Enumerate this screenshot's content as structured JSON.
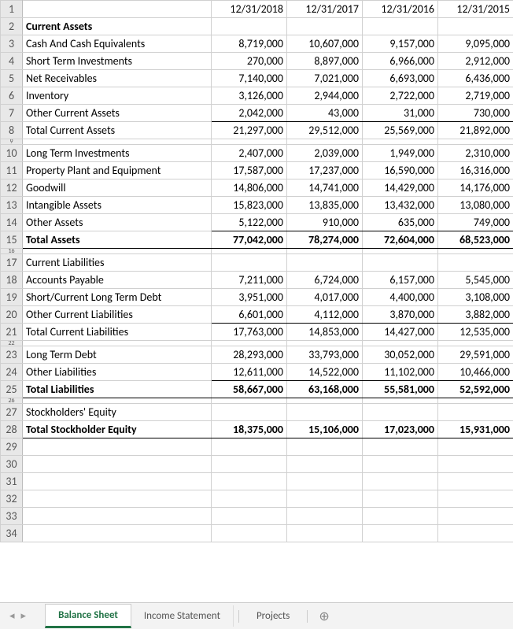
{
  "header": {
    "dates": [
      "12/31/2018",
      "12/31/2017",
      "12/31/2016",
      "12/31/2015"
    ]
  },
  "rows": [
    {
      "num": "1",
      "label": "",
      "values": [
        "12/31/2018",
        "12/31/2017",
        "12/31/2016",
        "12/31/2015"
      ],
      "useDates": true
    },
    {
      "num": "2",
      "label": "Current Assets",
      "values": [
        "",
        "",
        "",
        ""
      ],
      "bold": true
    },
    {
      "num": "3",
      "label": "Cash And Cash Equivalents",
      "values": [
        "8,719,000",
        "10,607,000",
        "9,157,000",
        "9,095,000"
      ]
    },
    {
      "num": "4",
      "label": "Short Term Investments",
      "values": [
        "270,000",
        "8,897,000",
        "6,966,000",
        "2,912,000"
      ]
    },
    {
      "num": "5",
      "label": "Net Receivables",
      "values": [
        "7,140,000",
        "7,021,000",
        "6,693,000",
        "6,436,000"
      ]
    },
    {
      "num": "6",
      "label": "Inventory",
      "values": [
        "3,126,000",
        "2,944,000",
        "2,722,000",
        "2,719,000"
      ]
    },
    {
      "num": "7",
      "label": "Other Current Assets",
      "values": [
        "2,042,000",
        "43,000",
        "31,000",
        "730,000"
      ],
      "underline": true
    },
    {
      "num": "8",
      "label": "Total Current Assets",
      "values": [
        "21,297,000",
        "29,512,000",
        "25,569,000",
        "21,892,000"
      ]
    },
    {
      "num": "9",
      "hidden": true
    },
    {
      "num": "10",
      "label": "Long Term Investments",
      "values": [
        "2,407,000",
        "2,039,000",
        "1,949,000",
        "2,310,000"
      ]
    },
    {
      "num": "11",
      "label": "Property Plant and Equipment",
      "values": [
        "17,587,000",
        "17,237,000",
        "16,590,000",
        "16,316,000"
      ]
    },
    {
      "num": "12",
      "label": "Goodwill",
      "values": [
        "14,806,000",
        "14,741,000",
        "14,429,000",
        "14,176,000"
      ]
    },
    {
      "num": "13",
      "label": "Intangible Assets",
      "values": [
        "15,823,000",
        "13,835,000",
        "13,432,000",
        "13,080,000"
      ]
    },
    {
      "num": "14",
      "label": "Other Assets",
      "values": [
        "5,122,000",
        "910,000",
        "635,000",
        "749,000"
      ],
      "underline": true
    },
    {
      "num": "15",
      "label": "Total Assets",
      "values": [
        "77,042,000",
        "78,274,000",
        "72,604,000",
        "68,523,000"
      ],
      "bold": true,
      "totalLine": true
    },
    {
      "num": "16",
      "hidden": true
    },
    {
      "num": "17",
      "label": "Current Liabilities",
      "values": [
        "",
        "",
        "",
        ""
      ]
    },
    {
      "num": "18",
      "label": "Accounts Payable",
      "values": [
        "7,211,000",
        "6,724,000",
        "6,157,000",
        "5,545,000"
      ]
    },
    {
      "num": "19",
      "label": "Short/Current Long Term Debt",
      "values": [
        "3,951,000",
        "4,017,000",
        "4,400,000",
        "3,108,000"
      ]
    },
    {
      "num": "20",
      "label": "Other Current Liabilities",
      "values": [
        "6,601,000",
        "4,112,000",
        "3,870,000",
        "3,882,000"
      ],
      "underline": true
    },
    {
      "num": "21",
      "label": "Total Current Liabilities",
      "values": [
        "17,763,000",
        "14,853,000",
        "14,427,000",
        "12,535,000"
      ]
    },
    {
      "num": "22",
      "hidden": true
    },
    {
      "num": "23",
      "label": "Long Term Debt",
      "values": [
        "28,293,000",
        "33,793,000",
        "30,052,000",
        "29,591,000"
      ]
    },
    {
      "num": "24",
      "label": "Other Liabilities",
      "values": [
        "12,611,000",
        "14,522,000",
        "11,102,000",
        "10,466,000"
      ],
      "underline": true
    },
    {
      "num": "25",
      "label": "Total Liabilities",
      "values": [
        "58,667,000",
        "63,168,000",
        "55,581,000",
        "52,592,000"
      ],
      "bold": true,
      "totalLine": true
    },
    {
      "num": "26",
      "hidden": true
    },
    {
      "num": "27",
      "label": "Stockholders' Equity",
      "values": [
        "",
        "",
        "",
        ""
      ]
    },
    {
      "num": "28",
      "label": "Total Stockholder Equity",
      "values": [
        "18,375,000",
        "15,106,000",
        "17,023,000",
        "15,931,000"
      ],
      "bold": true,
      "totalLine": true
    },
    {
      "num": "29",
      "label": "",
      "values": [
        "",
        "",
        "",
        ""
      ]
    },
    {
      "num": "30",
      "label": "",
      "values": [
        "",
        "",
        "",
        ""
      ]
    },
    {
      "num": "31",
      "label": "",
      "values": [
        "",
        "",
        "",
        ""
      ]
    },
    {
      "num": "32",
      "label": "",
      "values": [
        "",
        "",
        "",
        ""
      ]
    },
    {
      "num": "33",
      "label": "",
      "values": [
        "",
        "",
        "",
        ""
      ]
    },
    {
      "num": "34",
      "label": "",
      "values": [
        "",
        "",
        "",
        ""
      ]
    }
  ],
  "tabs": {
    "nav_prev": "◂",
    "nav_next": "▸",
    "items": [
      {
        "label": "Balance Sheet",
        "active": true
      },
      {
        "label": "Income Statement",
        "active": false
      },
      {
        "label": "Projects",
        "active": false
      }
    ],
    "add_icon": "⊕"
  },
  "colors": {
    "accent": "#217346",
    "grid_border": "#d0d0d0",
    "row_header_bg": "#e8e8e8"
  }
}
